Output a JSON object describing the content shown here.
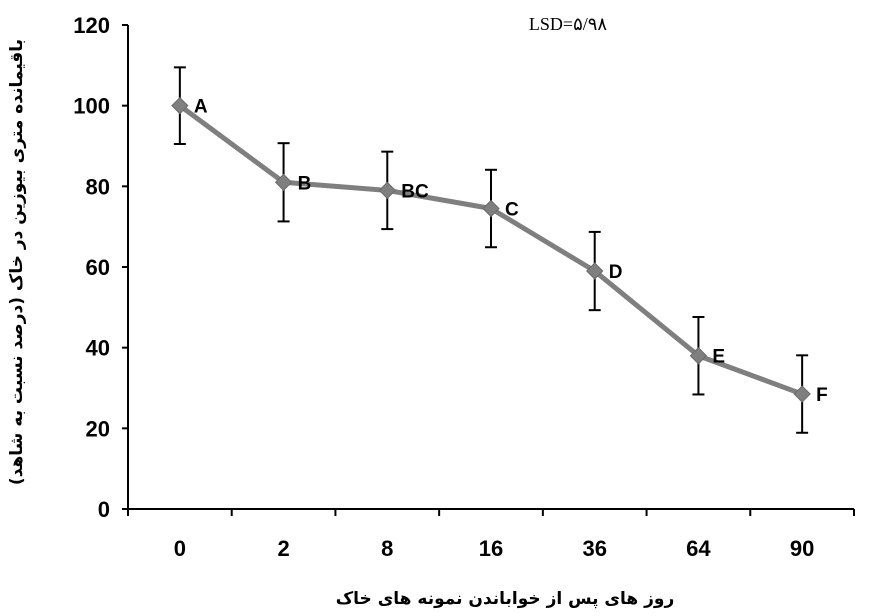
{
  "chart_data": {
    "type": "line",
    "title": "",
    "annotation": "LSD=۵/۹۸",
    "xlabel": "روز های پس از خواباندن نمونه های خاک",
    "ylabel": "باقیمانده متری بیوزین در خاک (درصد نسبت به شاهد)",
    "ylim": [
      0,
      120
    ],
    "yticks": [
      "0",
      "20",
      "40",
      "60",
      "80",
      "100",
      "120"
    ],
    "categories": [
      "0",
      "2",
      "8",
      "16",
      "36",
      "64",
      "90"
    ],
    "grid": false,
    "legend": "none",
    "line_color": "#7f7f7f",
    "errorbar_color": "#000000",
    "series": [
      {
        "values": [
          100,
          81,
          79,
          74.5,
          59,
          38,
          28.5
        ],
        "errors": [
          9.5,
          9.7,
          9.6,
          9.6,
          9.7,
          9.6,
          9.6
        ],
        "labels": [
          "A",
          "B",
          "BC",
          "C",
          "D",
          "E",
          "F"
        ]
      }
    ]
  }
}
